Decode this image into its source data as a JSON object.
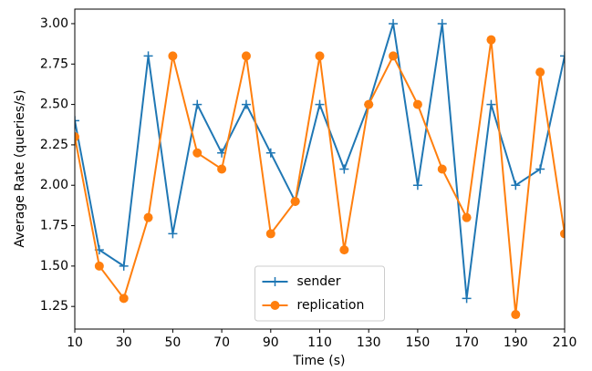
{
  "chart_data": {
    "type": "line",
    "xlabel": "Time (s)",
    "ylabel": "Average Rate (queries/s)",
    "x": [
      10,
      20,
      30,
      40,
      50,
      60,
      70,
      80,
      90,
      100,
      110,
      120,
      130,
      140,
      150,
      160,
      170,
      180,
      190,
      200,
      210
    ],
    "series": [
      {
        "name": "sender",
        "color": "#1f77b4",
        "marker": "plus",
        "values": [
          2.4,
          1.6,
          1.5,
          2.8,
          1.7,
          2.5,
          2.2,
          2.5,
          2.2,
          1.9,
          2.5,
          2.1,
          2.5,
          3.0,
          2.0,
          3.0,
          1.3,
          2.5,
          2.0,
          2.1,
          2.8
        ]
      },
      {
        "name": "replication",
        "color": "#ff7f0e",
        "marker": "circle",
        "values": [
          2.3,
          1.5,
          1.3,
          1.8,
          2.8,
          2.2,
          2.1,
          2.8,
          1.7,
          1.9,
          2.8,
          1.6,
          2.5,
          2.8,
          2.5,
          2.1,
          1.8,
          2.9,
          1.2,
          2.7,
          1.7
        ]
      }
    ],
    "xlim": [
      10,
      210
    ],
    "xticks": [
      10,
      30,
      50,
      70,
      90,
      110,
      130,
      150,
      170,
      190,
      210
    ],
    "ylim": [
      1.11,
      3.09
    ],
    "yticks": [
      1.25,
      {
        "value": 1.5,
        "label": "1.50"
      },
      1.75,
      {
        "value": 2.0,
        "label": "2.00"
      },
      2.25,
      {
        "value": 2.5,
        "label": "2.50"
      },
      2.75,
      {
        "value": 3.0,
        "label": "3.00"
      }
    ],
    "legend": "lower center"
  }
}
